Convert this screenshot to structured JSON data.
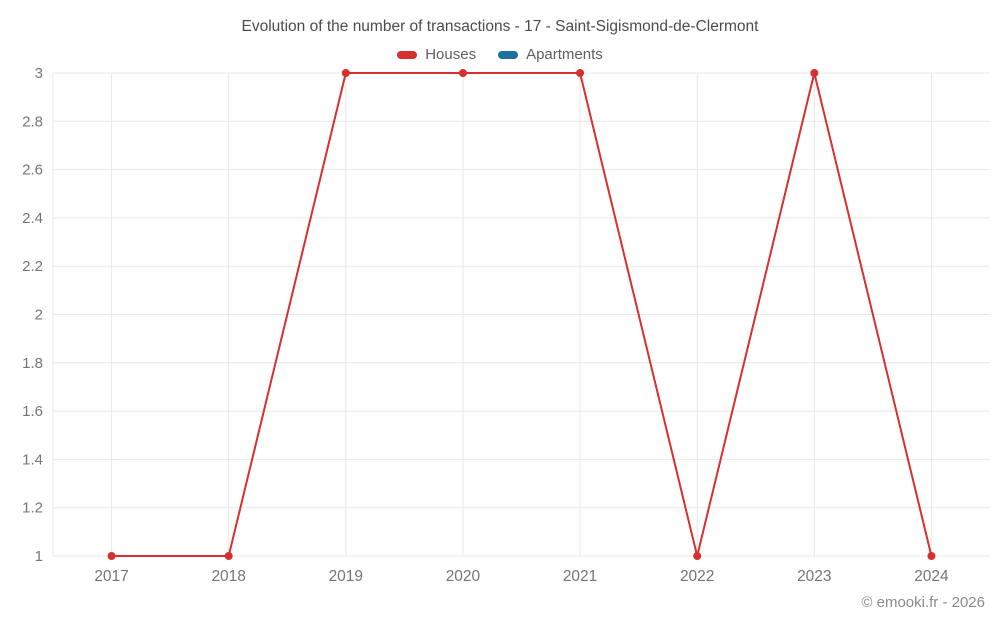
{
  "footer": {
    "text": "© emooki.fr - 2026"
  },
  "colors": {
    "houses": "#d7302f",
    "apartments": "#1d6fa0",
    "grid": "#e8e8e8",
    "tick_text": "#757575",
    "title_text": "#4c4c4c",
    "legend_text": "#5f5f5f",
    "footer_text": "#8a8a8a"
  },
  "chart_data": {
    "type": "line",
    "title": "Evolution of the number of transactions - 17 - Saint-Sigismond-de-Clermont",
    "categories": [
      "2017",
      "2018",
      "2019",
      "2020",
      "2021",
      "2022",
      "2023",
      "2024"
    ],
    "series": [
      {
        "name": "Houses",
        "color": "#d7302f",
        "values": [
          1,
          1,
          3,
          3,
          3,
          1,
          3,
          1
        ]
      },
      {
        "name": "Apartments",
        "color": "#1d6fa0",
        "values": []
      }
    ],
    "xlabel": "",
    "ylabel": "",
    "ylim": [
      1,
      3
    ],
    "ytick_step": 0.2,
    "grid": true,
    "legend_position": "top"
  }
}
